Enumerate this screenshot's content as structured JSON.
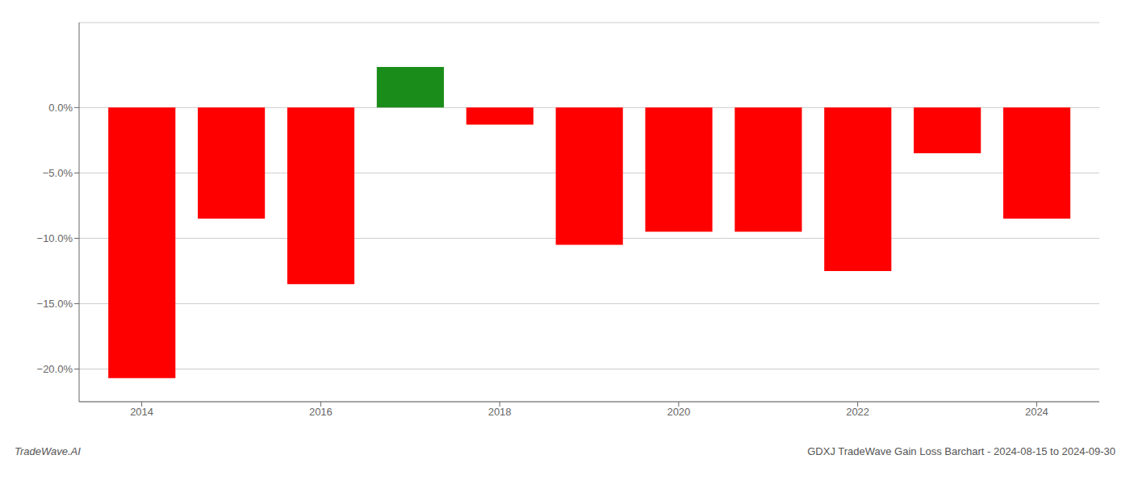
{
  "chart_data": {
    "type": "bar",
    "x": [
      2014,
      2015,
      2016,
      2017,
      2018,
      2019,
      2020,
      2021,
      2022,
      2023,
      2024
    ],
    "values": [
      -0.207,
      -0.085,
      -0.135,
      0.031,
      -0.013,
      -0.105,
      -0.095,
      -0.095,
      -0.125,
      -0.035,
      -0.085
    ],
    "colors": [
      "#ff0000",
      "#ff0000",
      "#ff0000",
      "#1a8c1a",
      "#ff0000",
      "#ff0000",
      "#ff0000",
      "#ff0000",
      "#ff0000",
      "#ff0000",
      "#ff0000"
    ],
    "xlim": [
      2013.3,
      2024.7
    ],
    "xticks": [
      2014,
      2016,
      2018,
      2020,
      2022,
      2024
    ],
    "ylim": [
      -0.225,
      0.065
    ],
    "yticks": [
      {
        "value": -0.2,
        "label": "−20.0%"
      },
      {
        "value": -0.15,
        "label": "−15.0%"
      },
      {
        "value": -0.1,
        "label": "−10.0%"
      },
      {
        "value": -0.05,
        "label": "−5.0%"
      },
      {
        "value": 0.0,
        "label": "0.0%"
      }
    ],
    "grid": true,
    "annotations": [
      "TradeWave.AI",
      "GDXJ TradeWave Gain Loss Barchart - 2024-08-15 to 2024-09-30"
    ]
  }
}
